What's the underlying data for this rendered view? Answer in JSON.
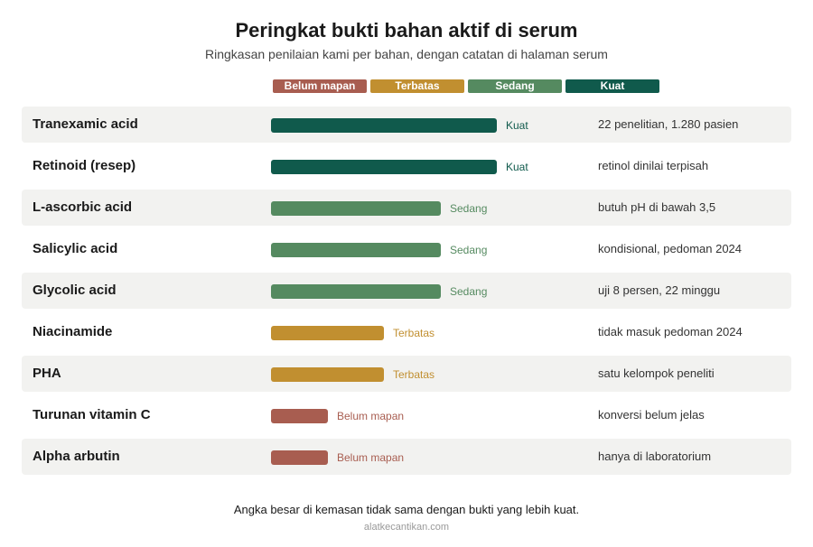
{
  "chart_data": {
    "type": "bar",
    "title": "Peringkat bukti bahan aktif di serum",
    "subtitle": "Ringkasan penilaian kami per bahan, dengan catatan di halaman serum",
    "xlabel": "",
    "ylabel": "",
    "scale_max": 4,
    "levels": [
      {
        "label": "Belum mapan",
        "value": 1,
        "color": "#a85d50"
      },
      {
        "label": "Terbatas",
        "value": 2,
        "color": "#c18f30"
      },
      {
        "label": "Sedang",
        "value": 3,
        "color": "#558a60"
      },
      {
        "label": "Kuat",
        "value": 4,
        "color": "#105a4c"
      }
    ],
    "categories": [
      "Tranexamic acid",
      "Retinoid (resep)",
      "L-ascorbic acid",
      "Salicylic acid",
      "Glycolic acid",
      "Niacinamide",
      "PHA",
      "Turunan vitamin C",
      "Alpha arbutin"
    ],
    "values": [
      4,
      4,
      3,
      3,
      3,
      2,
      2,
      1,
      1
    ],
    "level_labels": [
      "Kuat",
      "Kuat",
      "Sedang",
      "Sedang",
      "Sedang",
      "Terbatas",
      "Terbatas",
      "Belum mapan",
      "Belum mapan"
    ],
    "notes": [
      "22 penelitian, 1.280 pasien",
      "retinol dinilai terpisah",
      "butuh pH di bawah 3,5",
      "kondisional, pedoman 2024",
      "uji 8 persen, 22 minggu",
      "tidak masuk pedoman 2024",
      "satu kelompok peneliti",
      "konversi belum jelas",
      "hanya di laboratorium"
    ],
    "legend_position": "top-center",
    "grid": false
  },
  "footnote": "Angka besar di kemasan tidak sama dengan bukti yang lebih kuat.",
  "source": "alatkecantikan.com"
}
